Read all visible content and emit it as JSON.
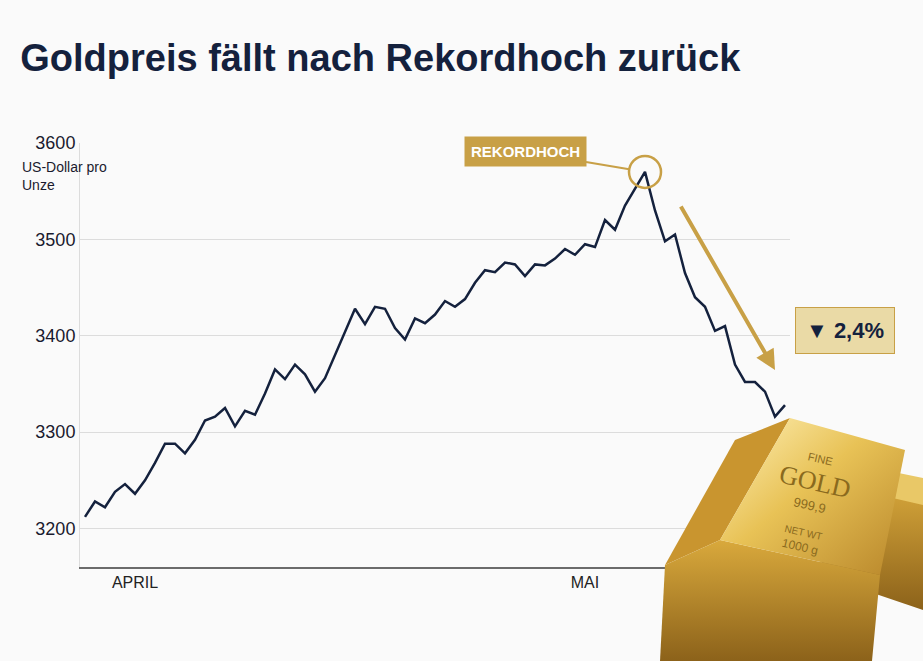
{
  "chart_data": {
    "type": "line",
    "title": "Goldpreis fällt nach Rekordhoch zurück",
    "y_label": "US-Dollar pro Unze",
    "categories": [
      null,
      null,
      null,
      null,
      null,
      "APRIL",
      null,
      null,
      null,
      null,
      null,
      null,
      null,
      null,
      null,
      null,
      null,
      null,
      null,
      null,
      null,
      null,
      null,
      null,
      null,
      null,
      null,
      null,
      null,
      null,
      null,
      null,
      null,
      null,
      null,
      null,
      null,
      null,
      null,
      null,
      null,
      null,
      null,
      null,
      null,
      null,
      null,
      null,
      null,
      null,
      "MAI",
      null,
      null,
      null,
      null,
      null,
      null,
      null,
      null,
      null,
      null,
      null,
      null,
      null,
      null,
      null,
      null,
      null,
      null,
      null,
      null
    ],
    "values": [
      3212,
      3228,
      3222,
      3238,
      3246,
      3236,
      3250,
      3268,
      3288,
      3288,
      3278,
      3292,
      3312,
      3316,
      3325,
      3306,
      3322,
      3318,
      3340,
      3365,
      3355,
      3370,
      3360,
      3342,
      3356,
      3380,
      3405,
      3428,
      3412,
      3430,
      3428,
      3408,
      3396,
      3418,
      3413,
      3422,
      3436,
      3430,
      3438,
      3455,
      3468,
      3466,
      3476,
      3474,
      3462,
      3474,
      3473,
      3480,
      3490,
      3484,
      3495,
      3492,
      3520,
      3510,
      3535,
      3552,
      3570,
      3530,
      3498,
      3505,
      3465,
      3440,
      3430,
      3405,
      3410,
      3370,
      3352,
      3352,
      3342,
      3316,
      3328
    ],
    "color": "#14213d",
    "ylim": [
      3160,
      3600
    ],
    "yticks": [
      3200,
      3300,
      3400,
      3500,
      3600
    ],
    "grid": true,
    "annotations": [
      {
        "text": "REKORDHOCH"
      },
      {
        "text": "▼ 2,4%"
      }
    ]
  },
  "illustration": {
    "texts": [
      "FINE",
      "GOLD",
      "999,9",
      "NET WT",
      "1000 g"
    ]
  }
}
